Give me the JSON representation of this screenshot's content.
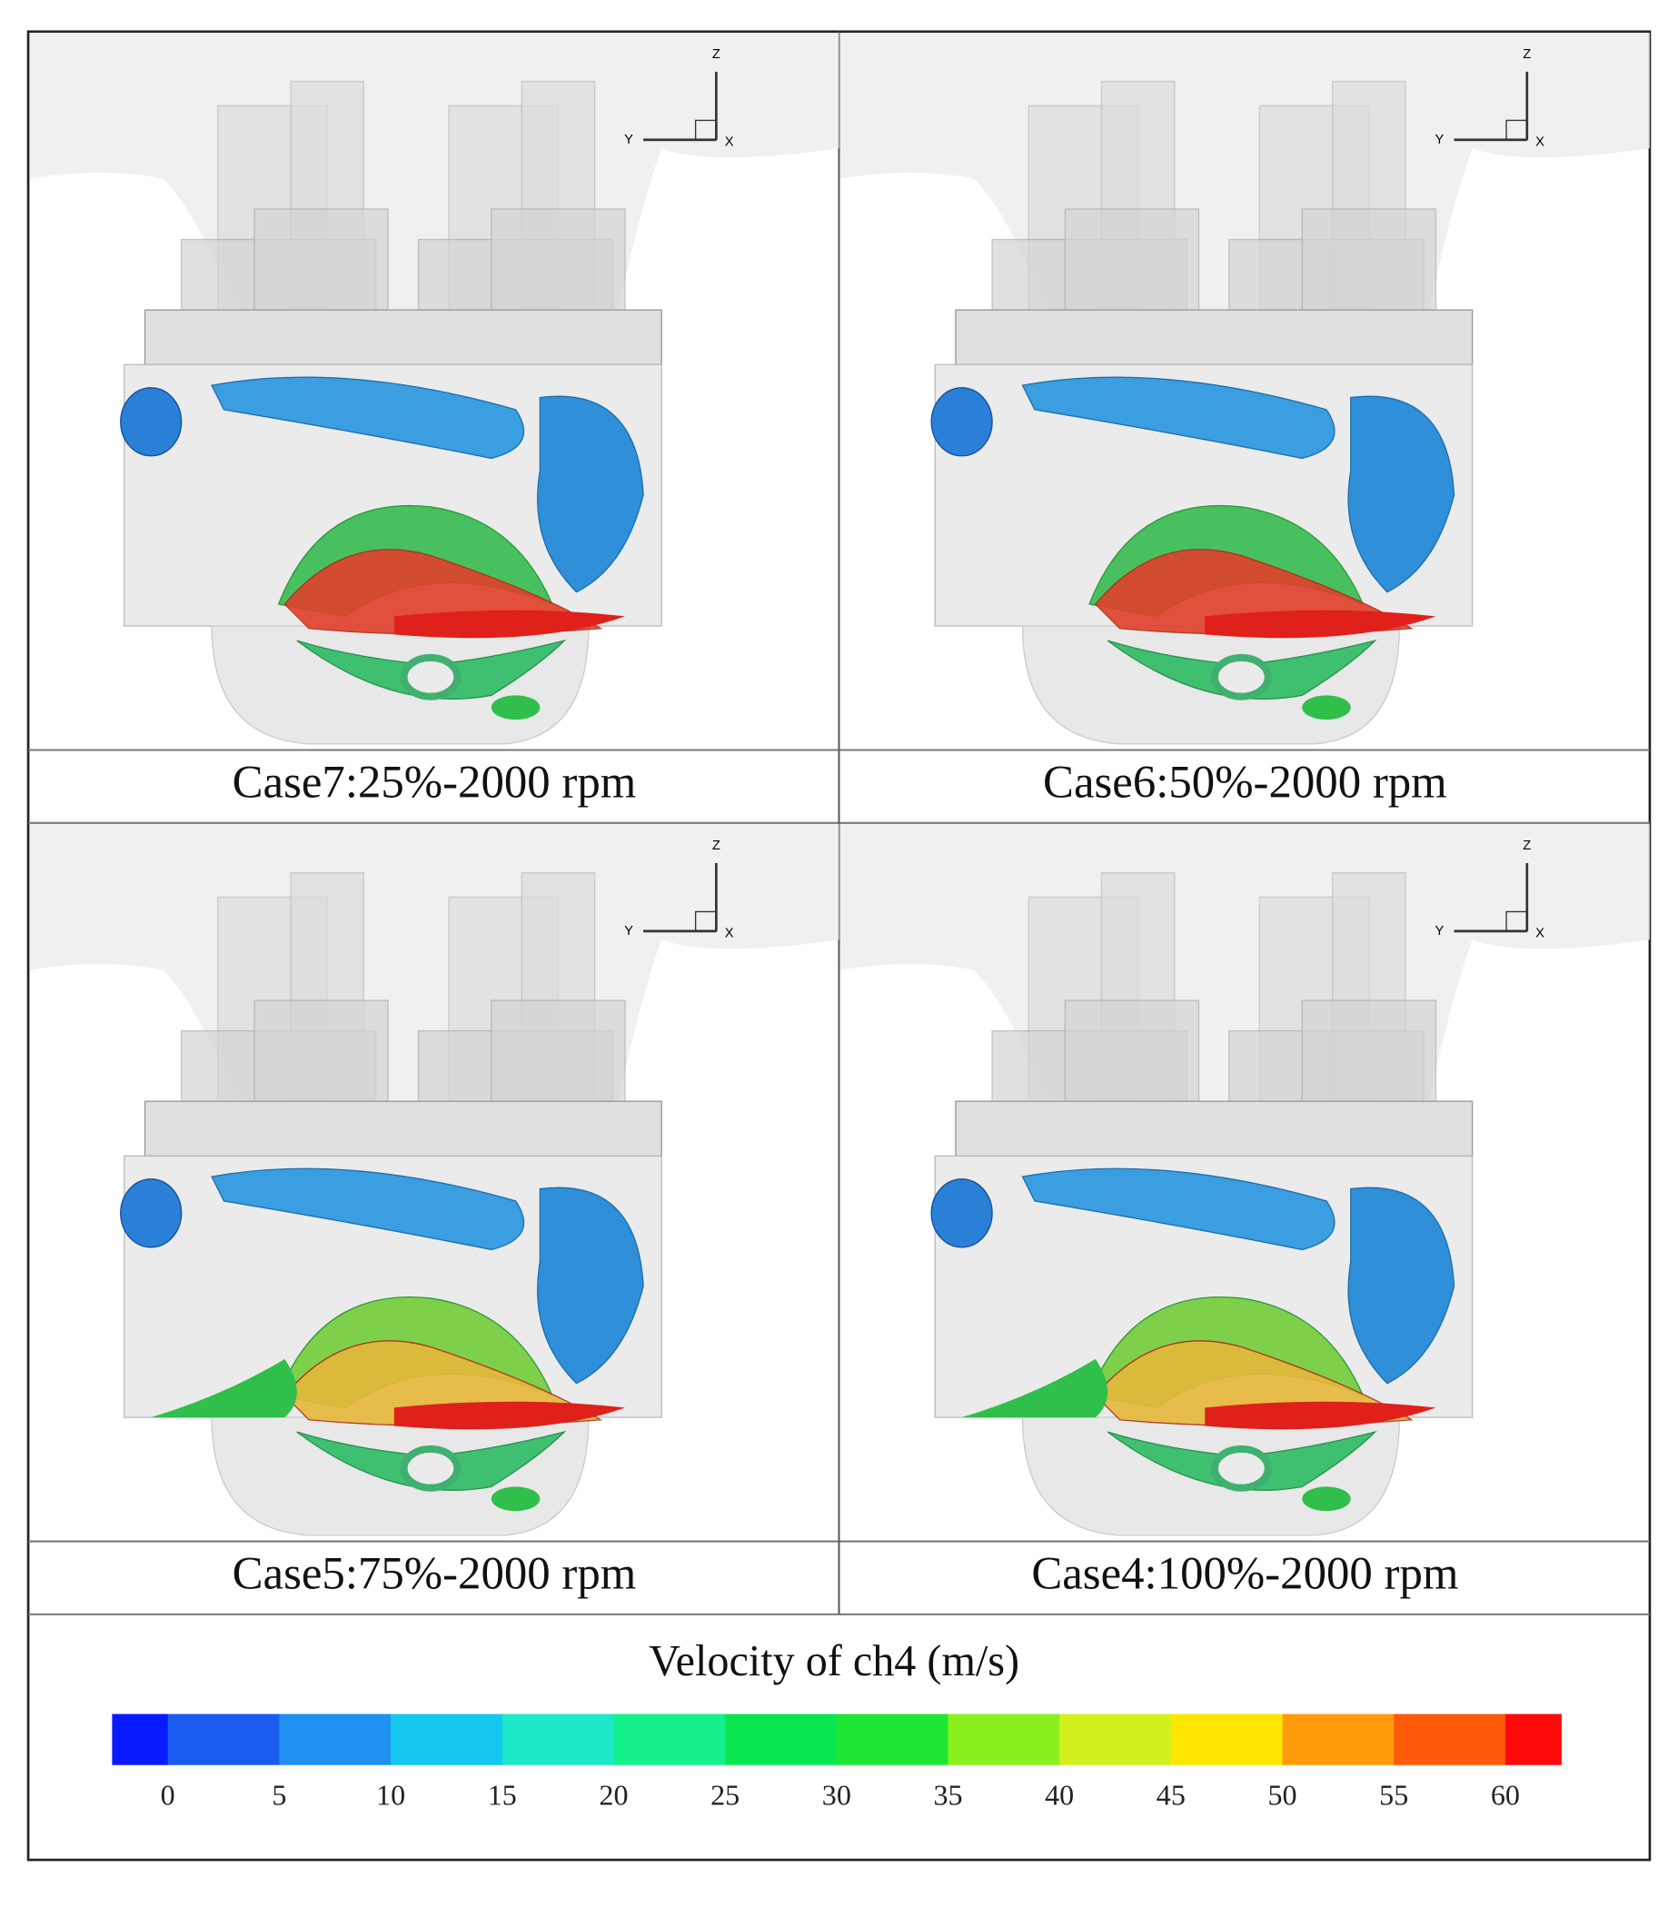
{
  "panels": [
    {
      "caption": "Case7:25%-2000 rpm",
      "axes": [
        "Z",
        "Y",
        "X"
      ]
    },
    {
      "caption": "Case6:50%-2000 rpm",
      "axes": [
        "Z",
        "Y",
        "X"
      ]
    },
    {
      "caption": "Case5:75%-2000 rpm",
      "axes": [
        "Z",
        "Y",
        "X"
      ]
    },
    {
      "caption": "Case4:100%-2000 rpm",
      "axes": [
        "Z",
        "Y",
        "X"
      ]
    }
  ],
  "colorbar": {
    "title": "Velocity of ch4 (m/s)",
    "range": [
      -2.5,
      62.5
    ],
    "ticks": [
      0,
      5,
      10,
      15,
      20,
      25,
      30,
      35,
      40,
      45,
      50,
      55,
      60
    ],
    "colors": [
      "#0a1aff",
      "#1a5cf0",
      "#1e90f0",
      "#14c8f0",
      "#1ee6c8",
      "#14f08c",
      "#0ae650",
      "#1ee632",
      "#8cf01e",
      "#d2f01e",
      "#ffe600",
      "#ff9b0a",
      "#ff5a0a",
      "#ff0a0a"
    ]
  }
}
